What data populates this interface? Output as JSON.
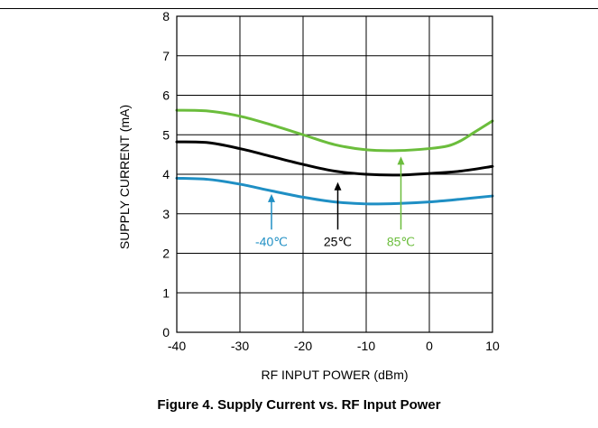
{
  "caption": "Figure 4. Supply Current vs. RF Input Power",
  "chart_data": {
    "type": "line",
    "title": "Figure 4. Supply Current vs. RF Input Power",
    "xlabel": "RF INPUT POWER (dBm)",
    "ylabel": "SUPPLY CURRENT (mA)",
    "xlim": [
      -40,
      10
    ],
    "ylim": [
      0,
      8
    ],
    "xticks": [
      -40,
      -30,
      -20,
      -10,
      0,
      10
    ],
    "yticks": [
      0,
      1,
      2,
      3,
      4,
      5,
      6,
      7,
      8
    ],
    "grid": true,
    "series": [
      {
        "name": "-40℃",
        "color": "#1f8fc4",
        "x": [
          -40,
          -35,
          -30,
          -25,
          -20,
          -15,
          -10,
          -5,
          0,
          5,
          10
        ],
        "y": [
          3.9,
          3.87,
          3.75,
          3.58,
          3.42,
          3.3,
          3.25,
          3.26,
          3.3,
          3.37,
          3.45
        ]
      },
      {
        "name": "25℃",
        "color": "#000000",
        "x": [
          -40,
          -35,
          -30,
          -25,
          -20,
          -15,
          -10,
          -5,
          0,
          5,
          10
        ],
        "y": [
          4.82,
          4.8,
          4.65,
          4.45,
          4.25,
          4.08,
          4.0,
          3.98,
          4.02,
          4.08,
          4.2
        ]
      },
      {
        "name": "85℃",
        "color": "#6bbd3c",
        "x": [
          -40,
          -35,
          -30,
          -25,
          -20,
          -15,
          -10,
          -5,
          0,
          3,
          5,
          7,
          10
        ],
        "y": [
          5.62,
          5.6,
          5.47,
          5.25,
          5.0,
          4.75,
          4.62,
          4.6,
          4.65,
          4.72,
          4.85,
          5.05,
          5.35
        ]
      }
    ],
    "annotations": [
      {
        "text": "-40℃",
        "color": "#1f8fc4",
        "arrow_x": -25,
        "arrow_from_y": 2.6,
        "arrow_to_y": 3.5
      },
      {
        "text": "25℃",
        "color": "#000000",
        "arrow_x": -14.5,
        "arrow_from_y": 2.6,
        "arrow_to_y": 3.8
      },
      {
        "text": "85℃",
        "color": "#6bbd3c",
        "arrow_x": -4.5,
        "arrow_from_y": 2.6,
        "arrow_to_y": 4.45
      }
    ]
  }
}
